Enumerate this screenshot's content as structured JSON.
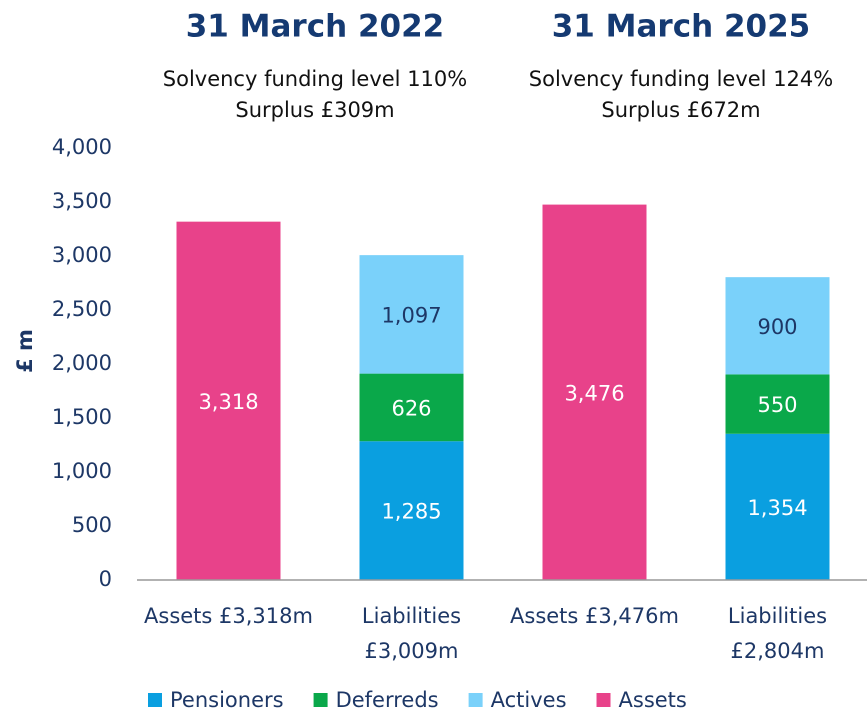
{
  "chart_data": {
    "type": "stacked_bar",
    "annotations": [
      {
        "title": "31 March 2022",
        "lines": [
          "Solvency funding level 110%",
          "Surplus £309m"
        ]
      },
      {
        "title": "31 March 2025",
        "lines": [
          "Solvency funding level 124%",
          "Surplus £672m"
        ]
      }
    ],
    "y_label": "£ m",
    "categories": [
      [
        "Assets £3,318m"
      ],
      [
        "Liabilities",
        "£3,009m"
      ],
      [
        "Assets £3,476m"
      ],
      [
        "Liabilities",
        "£2,804m"
      ]
    ],
    "series": [
      {
        "name": "Pensioners",
        "color": "#0a9fe0",
        "label_color": "#ffffff",
        "values": [
          null,
          1285,
          null,
          1354
        ],
        "value_labels": [
          null,
          "1,285",
          null,
          "1,354"
        ]
      },
      {
        "name": "Deferreds",
        "color": "#0aa84a",
        "label_color": "#ffffff",
        "values": [
          null,
          626,
          null,
          550
        ]
      },
      {
        "name": "Actives",
        "color": "#7ad1fa",
        "label_color": "#1d3766",
        "values": [
          null,
          1097,
          null,
          900
        ],
        "value_labels": [
          null,
          "1,097",
          null,
          null
        ]
      },
      {
        "name": "Assets",
        "color": "#e8428a",
        "label_color": "#ffffff",
        "values": [
          3318,
          null,
          3476,
          null
        ],
        "value_labels": [
          "3,318",
          null,
          "3,476",
          null
        ]
      }
    ],
    "ylim": [
      0,
      4000
    ],
    "yticks": [
      0,
      500,
      {
        "value": 1000,
        "label": "1,000"
      },
      {
        "value": 1500,
        "label": "1,500"
      },
      {
        "value": 2000,
        "label": "2,000"
      },
      {
        "value": 2500,
        "label": "2,500"
      },
      {
        "value": 3000,
        "label": "3,000"
      },
      {
        "value": 3500,
        "label": "3,500"
      },
      {
        "value": 4000,
        "label": "4,000"
      }
    ],
    "grid": false,
    "legend": "bottom"
  }
}
